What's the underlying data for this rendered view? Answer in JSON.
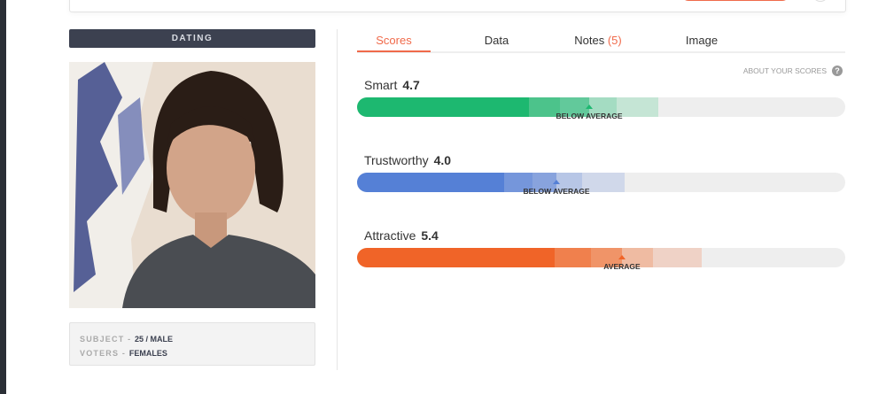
{
  "category": "DATING",
  "subject": {
    "subject_label": "SUBJECT",
    "subject_value": "25 / MALE",
    "voters_label": "VOTERS",
    "voters_value": "FEMALES"
  },
  "tabs": [
    {
      "label": "Scores",
      "active": true
    },
    {
      "label": "Data"
    },
    {
      "label": "Notes",
      "count": "(5)"
    },
    {
      "label": "Image"
    }
  ],
  "about_scores": "ABOUT YOUR SCORES",
  "help_icon": "question-circle-icon",
  "scores": [
    {
      "name": "Smart",
      "value": "4.7",
      "rating": "BELOW AVERAGE",
      "color": "#1db870",
      "shades": [
        "#1db870",
        "#4cc38b",
        "#62c99b",
        "#a4dcc2",
        "#c5e5d5"
      ]
    },
    {
      "name": "Trustworthy",
      "value": "4.0",
      "rating": "BELOW AVERAGE",
      "color": "#5580d6",
      "shades": [
        "#5580d6",
        "#7596db",
        "#88a3dd",
        "#b7c6e6",
        "#d0d8ea"
      ]
    },
    {
      "name": "Attractive",
      "value": "5.4",
      "rating": "AVERAGE",
      "color": "#f06428",
      "shades": [
        "#f06428",
        "#f0804d",
        "#f09468",
        "#efbba2",
        "#efd2c6"
      ]
    }
  ]
}
